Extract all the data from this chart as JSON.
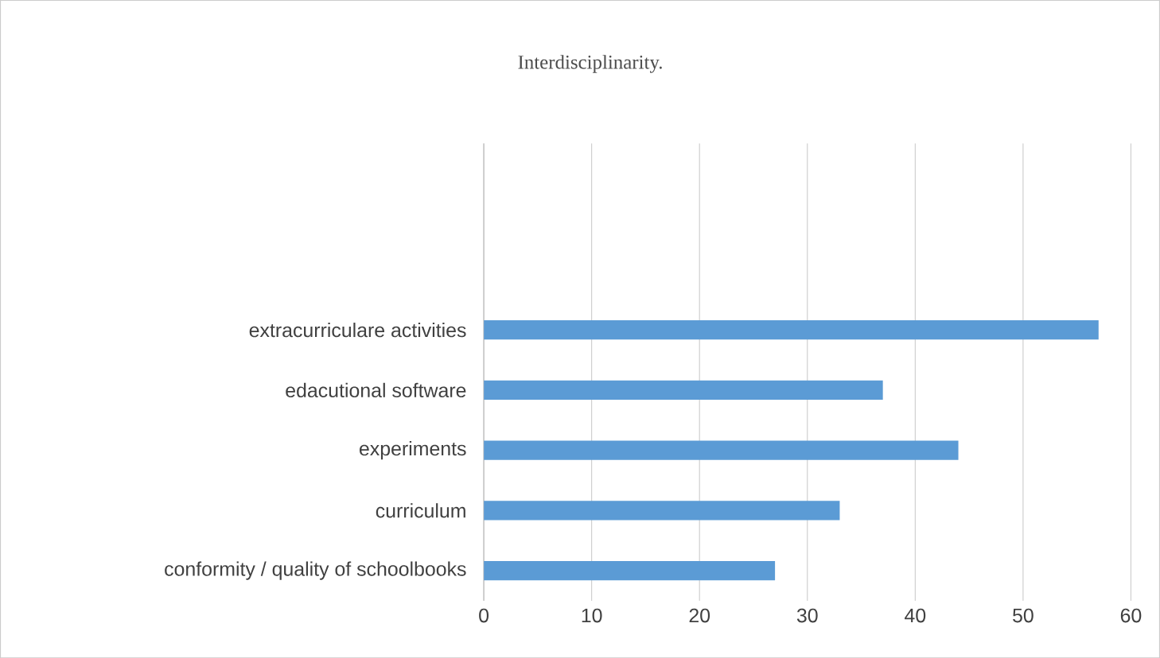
{
  "chart_data": {
    "type": "bar",
    "orientation": "horizontal",
    "title": "Interdisciplinarity.",
    "categories": [
      "extracurriculare activities",
      "edacutional software",
      "experiments",
      "curriculum",
      "conformity / quality of schoolbooks"
    ],
    "values": [
      57,
      37,
      44,
      33,
      27
    ],
    "color": "#5b9bd5",
    "xlim": [
      0,
      60
    ],
    "xticks": [
      0,
      10,
      20,
      30,
      40,
      50,
      60
    ],
    "grid": "x"
  }
}
